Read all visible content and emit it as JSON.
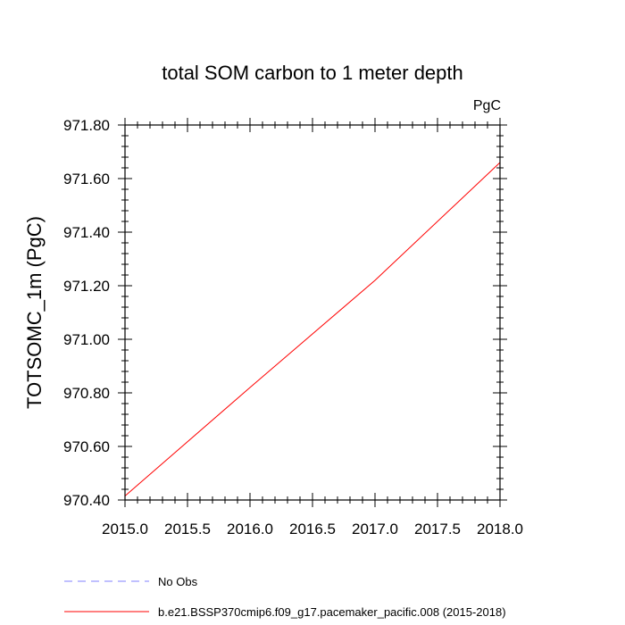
{
  "chart_data": {
    "type": "line",
    "title": "total SOM carbon to 1 meter depth",
    "units_label": "PgC",
    "xlabel": "",
    "ylabel": "TOTSOMC_1m  (PgC)",
    "xlim": [
      2015.0,
      2018.0
    ],
    "ylim": [
      970.4,
      971.8
    ],
    "x_ticks": [
      "2015.0",
      "2015.5",
      "2016.0",
      "2016.5",
      "2017.0",
      "2017.5",
      "2018.0"
    ],
    "y_ticks": [
      "970.40",
      "970.60",
      "970.80",
      "971.00",
      "971.20",
      "971.40",
      "971.60",
      "971.80"
    ],
    "grid": false,
    "legend_placement": "bottom",
    "series": [
      {
        "name": "b.e21.BSSP370cmip6.f09_g17.pacemaker_pacific.008 (2015-2018)",
        "color": "#ff0000",
        "dash": "solid",
        "x": [
          2015.0,
          2016.0,
          2017.0,
          2018.0
        ],
        "values": [
          970.415,
          970.82,
          971.22,
          971.66
        ]
      }
    ],
    "legend": [
      {
        "label": "No Obs",
        "color": "#8080ff",
        "dash": "dashed"
      },
      {
        "label": "b.e21.BSSP370cmip6.f09_g17.pacemaker_pacific.008 (2015-2018)",
        "color": "#ff0000",
        "dash": "solid"
      }
    ]
  }
}
